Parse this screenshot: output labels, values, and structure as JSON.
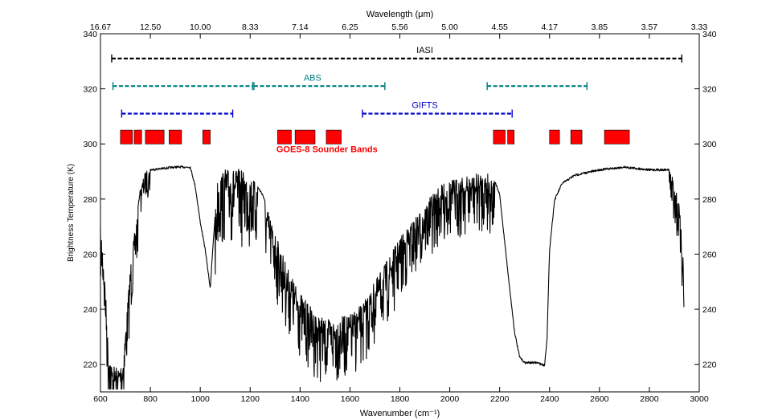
{
  "chart_data": {
    "type": "line",
    "title": "",
    "xlabel": "Wavenumber (cm⁻¹)",
    "ylabel": "Brightness Temperature (K)",
    "top_xlabel": "Wavelength (μm)",
    "xlim": [
      600,
      3000
    ],
    "ylim": [
      210,
      340
    ],
    "x_ticks": [
      600,
      800,
      1000,
      1200,
      1400,
      1600,
      1800,
      2000,
      2200,
      2400,
      2600,
      2800,
      3000
    ],
    "x_tick_labels": [
      "600",
      "800",
      "1000",
      "1200",
      "1400",
      "1600",
      "1800",
      "2000",
      "2200",
      "2400",
      "2600",
      "2800",
      "3000"
    ],
    "y_ticks": [
      220,
      240,
      260,
      280,
      300,
      320,
      340
    ],
    "y_tick_labels": [
      "220",
      "240",
      "260",
      "280",
      "300",
      "320",
      "340"
    ],
    "top_ticks": [
      {
        "wavenumber": 600,
        "label": "16.67"
      },
      {
        "wavenumber": 800,
        "label": "12.50"
      },
      {
        "wavenumber": 1000,
        "label": "10.00"
      },
      {
        "wavenumber": 1200,
        "label": "8.33"
      },
      {
        "wavenumber": 1400,
        "label": "7.14"
      },
      {
        "wavenumber": 1600,
        "label": "6.25"
      },
      {
        "wavenumber": 1800,
        "label": "5.56"
      },
      {
        "wavenumber": 2000,
        "label": "5.00"
      },
      {
        "wavenumber": 2200,
        "label": "4.55"
      },
      {
        "wavenumber": 2400,
        "label": "4.17"
      },
      {
        "wavenumber": 2600,
        "label": "3.85"
      },
      {
        "wavenumber": 2800,
        "label": "3.57"
      },
      {
        "wavenumber": 3000,
        "label": "3.33"
      }
    ],
    "spectrum_envelope": [
      {
        "x": 600,
        "y": 270
      },
      {
        "x": 610,
        "y": 262
      },
      {
        "x": 620,
        "y": 248
      },
      {
        "x": 630,
        "y": 228
      },
      {
        "x": 645,
        "y": 220
      },
      {
        "x": 670,
        "y": 219
      },
      {
        "x": 690,
        "y": 222
      },
      {
        "x": 705,
        "y": 238
      },
      {
        "x": 720,
        "y": 256
      },
      {
        "x": 740,
        "y": 270
      },
      {
        "x": 760,
        "y": 284
      },
      {
        "x": 780,
        "y": 290
      },
      {
        "x": 800,
        "y": 291
      },
      {
        "x": 900,
        "y": 292
      },
      {
        "x": 960,
        "y": 292
      },
      {
        "x": 980,
        "y": 285
      },
      {
        "x": 1000,
        "y": 272
      },
      {
        "x": 1020,
        "y": 262
      },
      {
        "x": 1040,
        "y": 248
      },
      {
        "x": 1050,
        "y": 262
      },
      {
        "x": 1070,
        "y": 288
      },
      {
        "x": 1100,
        "y": 291
      },
      {
        "x": 1150,
        "y": 291
      },
      {
        "x": 1200,
        "y": 289
      },
      {
        "x": 1250,
        "y": 282
      },
      {
        "x": 1300,
        "y": 268
      },
      {
        "x": 1350,
        "y": 255
      },
      {
        "x": 1400,
        "y": 246
      },
      {
        "x": 1450,
        "y": 240
      },
      {
        "x": 1500,
        "y": 236
      },
      {
        "x": 1550,
        "y": 237
      },
      {
        "x": 1600,
        "y": 238
      },
      {
        "x": 1650,
        "y": 242
      },
      {
        "x": 1700,
        "y": 250
      },
      {
        "x": 1750,
        "y": 258
      },
      {
        "x": 1800,
        "y": 266
      },
      {
        "x": 1850,
        "y": 272
      },
      {
        "x": 1900,
        "y": 278
      },
      {
        "x": 1950,
        "y": 284
      },
      {
        "x": 2000,
        "y": 287
      },
      {
        "x": 2050,
        "y": 288
      },
      {
        "x": 2100,
        "y": 289
      },
      {
        "x": 2150,
        "y": 290
      },
      {
        "x": 2175,
        "y": 288
      },
      {
        "x": 2200,
        "y": 282
      },
      {
        "x": 2220,
        "y": 265
      },
      {
        "x": 2240,
        "y": 248
      },
      {
        "x": 2260,
        "y": 232
      },
      {
        "x": 2280,
        "y": 223
      },
      {
        "x": 2300,
        "y": 221
      },
      {
        "x": 2350,
        "y": 221
      },
      {
        "x": 2380,
        "y": 220
      },
      {
        "x": 2390,
        "y": 230
      },
      {
        "x": 2400,
        "y": 262
      },
      {
        "x": 2420,
        "y": 280
      },
      {
        "x": 2450,
        "y": 286
      },
      {
        "x": 2500,
        "y": 289
      },
      {
        "x": 2600,
        "y": 291
      },
      {
        "x": 2700,
        "y": 292
      },
      {
        "x": 2800,
        "y": 291
      },
      {
        "x": 2880,
        "y": 291
      },
      {
        "x": 2900,
        "y": 287
      },
      {
        "x": 2920,
        "y": 278
      },
      {
        "x": 2930,
        "y": 265
      },
      {
        "x": 2940,
        "y": 256
      }
    ],
    "absorption_regions": [
      {
        "x_start": 600,
        "x_end": 750,
        "depth": 20
      },
      {
        "x_start": 760,
        "x_end": 800,
        "depth": 10
      },
      {
        "x_start": 1060,
        "x_end": 1230,
        "depth": 28
      },
      {
        "x_start": 1260,
        "x_end": 1820,
        "depth": 24
      },
      {
        "x_start": 1820,
        "x_end": 2180,
        "depth": 22
      },
      {
        "x_start": 2880,
        "x_end": 2945,
        "depth": 18
      }
    ],
    "instruments": [
      {
        "name": "IASI",
        "color": "#000000",
        "label_x": 1900,
        "label_y": 333,
        "segments": [
          {
            "x_start": 645,
            "x_end": 2930,
            "y": 331
          }
        ]
      },
      {
        "name": "ABS",
        "color": "#008080",
        "label_x": 1450,
        "label_y": 323,
        "segments": [
          {
            "x_start": 650,
            "x_end": 1210,
            "y": 321
          },
          {
            "x_start": 1215,
            "x_end": 1740,
            "y": 321
          },
          {
            "x_start": 2150,
            "x_end": 2550,
            "y": 321
          }
        ]
      },
      {
        "name": "GIFTS",
        "color": "#0000cc",
        "label_x": 1900,
        "label_y": 313,
        "segments": [
          {
            "x_start": 685,
            "x_end": 1130,
            "y": 311
          },
          {
            "x_start": 1650,
            "x_end": 2250,
            "y": 311
          }
        ]
      }
    ],
    "goes_bands": {
      "name": "GOES-8 Sounder Bands",
      "color": "#ff0000",
      "y_bottom": 300,
      "y_top": 305,
      "bands": [
        {
          "x_start": 680,
          "x_end": 728
        },
        {
          "x_start": 735,
          "x_end": 765
        },
        {
          "x_start": 780,
          "x_end": 855
        },
        {
          "x_start": 875,
          "x_end": 925
        },
        {
          "x_start": 1010,
          "x_end": 1040
        },
        {
          "x_start": 1310,
          "x_end": 1365
        },
        {
          "x_start": 1380,
          "x_end": 1460
        },
        {
          "x_start": 1505,
          "x_end": 1565
        },
        {
          "x_start": 2175,
          "x_end": 2222
        },
        {
          "x_start": 2232,
          "x_end": 2258
        },
        {
          "x_start": 2400,
          "x_end": 2440
        },
        {
          "x_start": 2485,
          "x_end": 2530
        },
        {
          "x_start": 2620,
          "x_end": 2720
        }
      ],
      "label_x": 1305,
      "label_y": 297
    },
    "grid": false,
    "legend": "none"
  }
}
